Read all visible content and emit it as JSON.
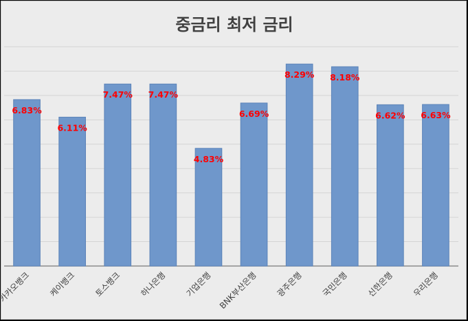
{
  "chart_data": {
    "type": "bar",
    "title": "중금리 최저 금리",
    "categories": [
      "카카오뱅크",
      "케이뱅크",
      "토스뱅크",
      "하나은행",
      "기업은행",
      "BNK부산은행",
      "광주은행",
      "국민은행",
      "신한은행",
      "우리은행"
    ],
    "values": [
      6.83,
      6.11,
      7.47,
      7.47,
      4.83,
      6.69,
      8.29,
      8.18,
      6.62,
      6.63
    ],
    "data_labels": [
      "6.83%",
      "6.11%",
      "7.47%",
      "7.47%",
      "4.83%",
      "6.69%",
      "8.29%",
      "8.18%",
      "6.62%",
      "6.63%"
    ],
    "ylim": [
      0,
      9
    ],
    "y_grid_step": 1,
    "grid": true,
    "show_y_tick_labels": false,
    "colors": {
      "bar": "#6f97cb",
      "bar_edge": "#5b83b8",
      "label": "#ff0000",
      "grid": "#d4d4d4",
      "axis": "#8c8c8c",
      "tick_text": "#404040"
    }
  }
}
